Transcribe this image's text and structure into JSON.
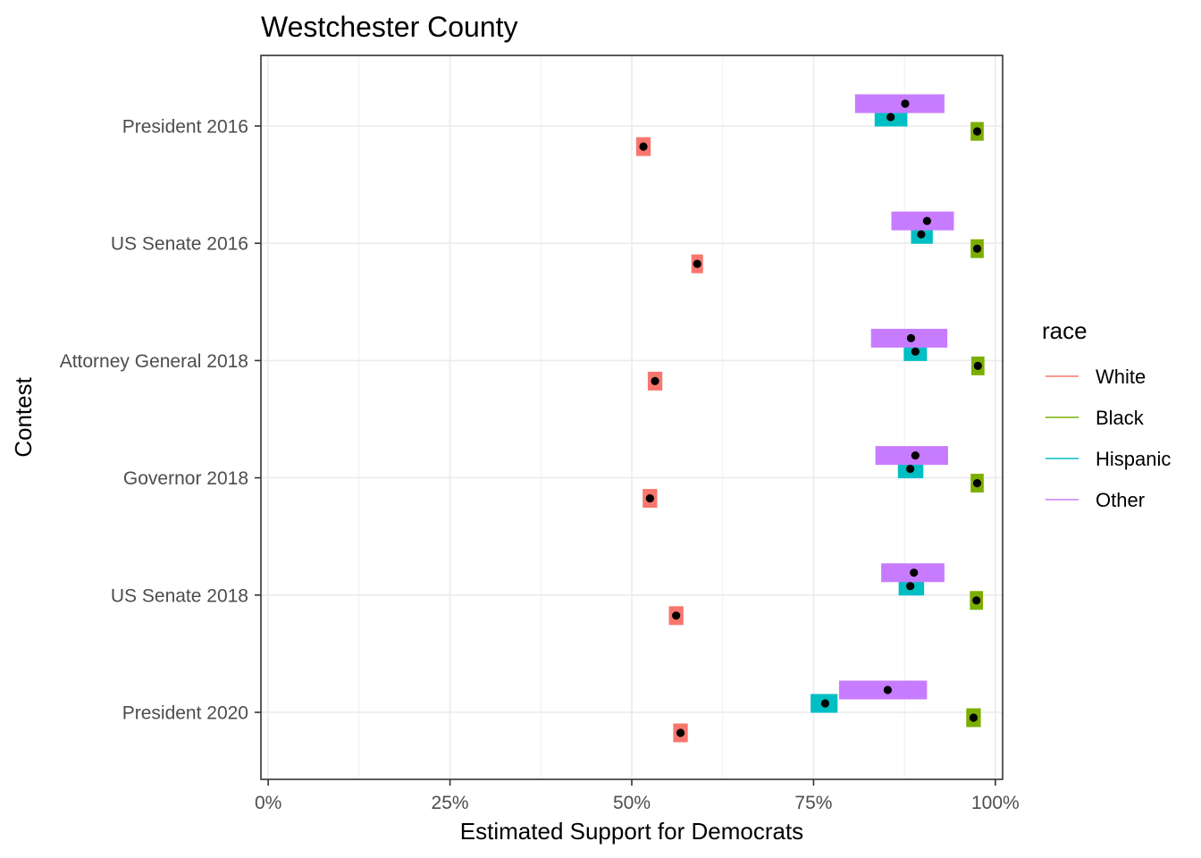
{
  "chart_data": {
    "type": "interval",
    "title": "Westchester County",
    "xlabel": "Estimated Support for Democrats",
    "ylabel": "Contest",
    "xlim": [
      -0.01,
      1.01
    ],
    "x_ticks": [
      0,
      0.25,
      0.5,
      0.75,
      1.0
    ],
    "x_tick_labels": [
      "0%",
      "25%",
      "50%",
      "75%",
      "100%"
    ],
    "grid": true,
    "legend": {
      "title": "race",
      "position": "right",
      "entries": [
        {
          "name": "White",
          "color": "#F8766D"
        },
        {
          "name": "Black",
          "color": "#7CAE00"
        },
        {
          "name": "Hispanic",
          "color": "#00BFC4"
        },
        {
          "name": "Other",
          "color": "#C77CFF"
        }
      ]
    },
    "categories": [
      "President 2016",
      "US Senate 2016",
      "Attorney General 2018",
      "Governor 2018",
      "US Senate 2018",
      "President 2020"
    ],
    "series": [
      {
        "name": "White",
        "color": "#F8766D",
        "estimate": [
          0.516,
          0.59,
          0.532,
          0.525,
          0.561,
          0.567
        ],
        "lower": [
          0.506,
          0.582,
          0.522,
          0.515,
          0.551,
          0.557
        ],
        "upper": [
          0.526,
          0.598,
          0.542,
          0.535,
          0.571,
          0.577
        ]
      },
      {
        "name": "Black",
        "color": "#7CAE00",
        "estimate": [
          0.975,
          0.975,
          0.976,
          0.975,
          0.974,
          0.97
        ],
        "lower": [
          0.966,
          0.966,
          0.967,
          0.966,
          0.965,
          0.96
        ],
        "upper": [
          0.984,
          0.984,
          0.985,
          0.984,
          0.983,
          0.98
        ]
      },
      {
        "name": "Hispanic",
        "color": "#00BFC4",
        "estimate": [
          0.856,
          0.898,
          0.89,
          0.883,
          0.883,
          0.766
        ],
        "lower": [
          0.834,
          0.884,
          0.874,
          0.866,
          0.867,
          0.746
        ],
        "upper": [
          0.879,
          0.914,
          0.906,
          0.901,
          0.902,
          0.783
        ]
      },
      {
        "name": "Other",
        "color": "#C77CFF",
        "estimate": [
          0.876,
          0.906,
          0.884,
          0.89,
          0.888,
          0.852
        ],
        "lower": [
          0.807,
          0.857,
          0.829,
          0.835,
          0.843,
          0.785
        ],
        "upper": [
          0.93,
          0.943,
          0.934,
          0.935,
          0.93,
          0.906
        ]
      }
    ]
  }
}
